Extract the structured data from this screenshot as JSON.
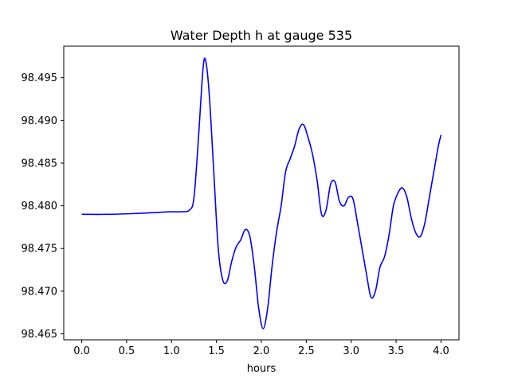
{
  "chart_data": {
    "type": "line",
    "title": "Water Depth h at gauge 535",
    "xlabel": "hours",
    "ylabel": "",
    "xlim": [
      -0.2,
      4.2
    ],
    "ylim": [
      98.4643,
      98.4987
    ],
    "xticks": [
      0.0,
      0.5,
      1.0,
      1.5,
      2.0,
      2.5,
      3.0,
      3.5,
      4.0
    ],
    "xtick_labels": [
      "0.0",
      "0.5",
      "1.0",
      "1.5",
      "2.0",
      "2.5",
      "3.0",
      "3.5",
      "4.0"
    ],
    "yticks": [
      98.465,
      98.47,
      98.475,
      98.48,
      98.485,
      98.49,
      98.495
    ],
    "ytick_labels": [
      "98.465",
      "98.470",
      "98.475",
      "98.480",
      "98.485",
      "98.490",
      "98.495"
    ],
    "grid": false,
    "series": [
      {
        "color": "#0000ff",
        "x": [
          0.0,
          0.3,
          0.6,
          0.8,
          1.0,
          1.1,
          1.2,
          1.25,
          1.3,
          1.35,
          1.38,
          1.42,
          1.47,
          1.52,
          1.57,
          1.62,
          1.67,
          1.72,
          1.77,
          1.82,
          1.87,
          1.92,
          1.97,
          2.02,
          2.07,
          2.12,
          2.17,
          2.22,
          2.27,
          2.32,
          2.37,
          2.42,
          2.47,
          2.52,
          2.57,
          2.62,
          2.67,
          2.72,
          2.77,
          2.82,
          2.87,
          2.92,
          2.97,
          3.02,
          3.07,
          3.12,
          3.17,
          3.22,
          3.27,
          3.32,
          3.37,
          3.42,
          3.47,
          3.52,
          3.57,
          3.62,
          3.67,
          3.72,
          3.77,
          3.82,
          3.87,
          3.92,
          3.97,
          4.0
        ],
        "y": [
          98.479,
          98.479,
          98.4791,
          98.4792,
          98.4793,
          98.4793,
          98.4795,
          98.481,
          98.488,
          98.496,
          98.497,
          98.493,
          98.484,
          98.475,
          98.4713,
          98.4712,
          98.4735,
          98.4752,
          98.476,
          98.4772,
          98.4765,
          98.473,
          98.468,
          98.4656,
          98.468,
          98.473,
          98.477,
          98.48,
          98.484,
          98.4855,
          98.487,
          98.489,
          98.4895,
          98.488,
          98.486,
          98.483,
          98.479,
          98.4795,
          98.4825,
          98.4828,
          98.4805,
          98.48,
          98.481,
          98.4808,
          98.478,
          98.475,
          98.472,
          98.4693,
          98.47,
          98.4728,
          98.474,
          98.4765,
          98.48,
          98.4815,
          98.4821,
          98.481,
          98.4785,
          98.4768,
          98.4764,
          98.478,
          98.481,
          98.484,
          98.487,
          98.4883
        ]
      }
    ]
  }
}
